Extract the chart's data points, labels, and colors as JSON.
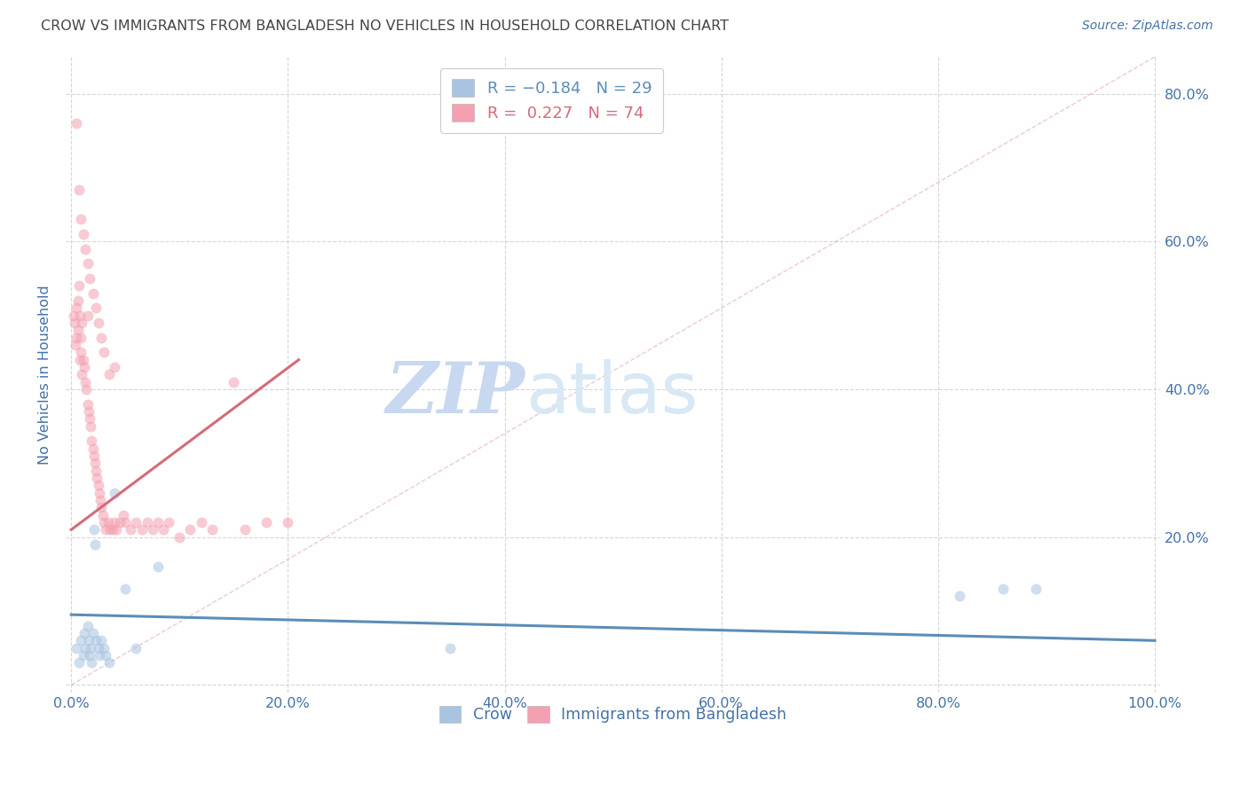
{
  "title": "CROW VS IMMIGRANTS FROM BANGLADESH NO VEHICLES IN HOUSEHOLD CORRELATION CHART",
  "source": "Source: ZipAtlas.com",
  "ylabel": "No Vehicles in Household",
  "xlim": [
    0.0,
    1.0
  ],
  "ylim": [
    0.0,
    0.85
  ],
  "xticks": [
    0.0,
    0.2,
    0.4,
    0.6,
    0.8,
    1.0
  ],
  "yticks": [
    0.0,
    0.2,
    0.4,
    0.6,
    0.8
  ],
  "xticklabels": [
    "0.0%",
    "20.0%",
    "40.0%",
    "60.0%",
    "80.0%",
    "100.0%"
  ],
  "right_yticklabels": [
    "20.0%",
    "40.0%",
    "60.0%",
    "80.0%"
  ],
  "right_yticks": [
    0.2,
    0.4,
    0.6,
    0.8
  ],
  "crow_scatter_x": [
    0.005,
    0.007,
    0.009,
    0.011,
    0.012,
    0.013,
    0.015,
    0.016,
    0.017,
    0.018,
    0.019,
    0.02,
    0.021,
    0.022,
    0.023,
    0.025,
    0.026,
    0.028,
    0.03,
    0.032,
    0.035,
    0.04,
    0.05,
    0.06,
    0.08,
    0.35,
    0.82,
    0.86,
    0.89
  ],
  "crow_scatter_y": [
    0.05,
    0.03,
    0.06,
    0.04,
    0.07,
    0.05,
    0.08,
    0.06,
    0.04,
    0.05,
    0.03,
    0.07,
    0.21,
    0.19,
    0.06,
    0.05,
    0.04,
    0.06,
    0.05,
    0.04,
    0.03,
    0.26,
    0.13,
    0.05,
    0.16,
    0.05,
    0.12,
    0.13,
    0.13
  ],
  "bangladesh_scatter_x": [
    0.002,
    0.003,
    0.004,
    0.005,
    0.005,
    0.006,
    0.006,
    0.007,
    0.008,
    0.008,
    0.009,
    0.009,
    0.01,
    0.01,
    0.011,
    0.012,
    0.013,
    0.014,
    0.015,
    0.015,
    0.016,
    0.017,
    0.018,
    0.019,
    0.02,
    0.021,
    0.022,
    0.023,
    0.024,
    0.025,
    0.026,
    0.027,
    0.028,
    0.029,
    0.03,
    0.032,
    0.034,
    0.036,
    0.038,
    0.04,
    0.042,
    0.045,
    0.048,
    0.05,
    0.055,
    0.06,
    0.065,
    0.07,
    0.075,
    0.08,
    0.085,
    0.09,
    0.1,
    0.11,
    0.12,
    0.13,
    0.15,
    0.16,
    0.18,
    0.2,
    0.005,
    0.007,
    0.009,
    0.011,
    0.013,
    0.015,
    0.017,
    0.02,
    0.023,
    0.025,
    0.028,
    0.03,
    0.035,
    0.04
  ],
  "bangladesh_scatter_y": [
    0.5,
    0.49,
    0.46,
    0.51,
    0.47,
    0.52,
    0.48,
    0.54,
    0.44,
    0.5,
    0.47,
    0.45,
    0.42,
    0.49,
    0.44,
    0.43,
    0.41,
    0.4,
    0.38,
    0.5,
    0.37,
    0.36,
    0.35,
    0.33,
    0.32,
    0.31,
    0.3,
    0.29,
    0.28,
    0.27,
    0.26,
    0.25,
    0.24,
    0.23,
    0.22,
    0.21,
    0.22,
    0.21,
    0.21,
    0.22,
    0.21,
    0.22,
    0.23,
    0.22,
    0.21,
    0.22,
    0.21,
    0.22,
    0.21,
    0.22,
    0.21,
    0.22,
    0.2,
    0.21,
    0.22,
    0.21,
    0.41,
    0.21,
    0.22,
    0.22,
    0.76,
    0.67,
    0.63,
    0.61,
    0.59,
    0.57,
    0.55,
    0.53,
    0.51,
    0.49,
    0.47,
    0.45,
    0.42,
    0.43
  ],
  "crow_line_x": [
    0.0,
    1.0
  ],
  "crow_line_y": [
    0.095,
    0.06
  ],
  "bangladesh_line_x": [
    0.0,
    0.21
  ],
  "bangladesh_line_y": [
    0.21,
    0.44
  ],
  "diagonal_line_x": [
    0.0,
    1.0
  ],
  "diagonal_line_y": [
    0.0,
    0.85
  ],
  "crow_color": "#5b8db8",
  "crow_scatter_color": "#a8c4e0",
  "bangladesh_color": "#d46b7a",
  "bangladesh_scatter_color": "#f4a0b0",
  "background_color": "#ffffff",
  "title_color": "#444444",
  "tick_color": "#4472a8",
  "grid_color": "#cccccc",
  "watermark_zip_color": "#c8d8f0",
  "watermark_atlas_color": "#d8e8f4",
  "scatter_alpha": 0.55,
  "scatter_size": 75
}
